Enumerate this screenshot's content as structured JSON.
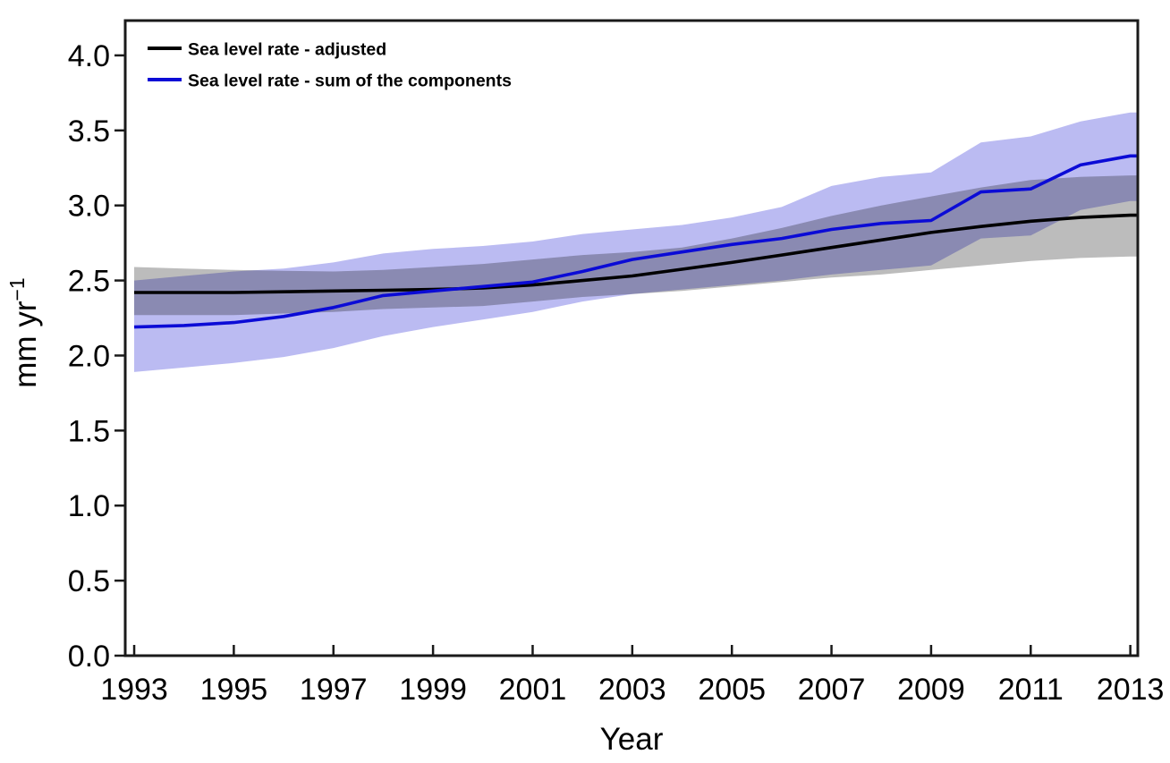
{
  "chart_data": {
    "type": "line",
    "title": "",
    "xlabel": "Year",
    "ylabel": "mm yr⁻¹",
    "grid": false,
    "legend_position": "top-left",
    "xlim": [
      1992.82,
      2013.15
    ],
    "ylim": [
      0,
      4.232
    ],
    "xticks": [
      1993,
      1995,
      1997,
      1999,
      2001,
      2003,
      2005,
      2007,
      2009,
      2011,
      2013
    ],
    "ytick_labels": [
      "0.0",
      "0.5",
      "1.0",
      "1.5",
      "2.0",
      "2.5",
      "3.0",
      "3.5",
      "4.0"
    ],
    "yticks": [
      0.0,
      0.5,
      1.0,
      1.5,
      2.0,
      2.5,
      3.0,
      3.5,
      4.0
    ],
    "x": [
      1993,
      1994,
      1995,
      1996,
      1997,
      1998,
      1999,
      2000,
      2001,
      2002,
      2003,
      2004,
      2005,
      2006,
      2007,
      2008,
      2009,
      2010,
      2011,
      2012,
      2013
    ],
    "series": [
      {
        "name": "Sea level rate - adjusted",
        "color": "#000000",
        "band_color": "#bcbcbc",
        "values": [
          2.42,
          2.42,
          2.42,
          2.425,
          2.43,
          2.435,
          2.44,
          2.45,
          2.47,
          2.5,
          2.53,
          2.575,
          2.62,
          2.67,
          2.72,
          2.77,
          2.82,
          2.86,
          2.895,
          2.92,
          2.935
        ],
        "band_top": [
          2.59,
          2.58,
          2.57,
          2.565,
          2.56,
          2.57,
          2.59,
          2.61,
          2.64,
          2.67,
          2.69,
          2.72,
          2.78,
          2.85,
          2.93,
          3.0,
          3.06,
          3.12,
          3.17,
          3.19,
          3.2
        ],
        "band_bottom": [
          2.27,
          2.27,
          2.27,
          2.28,
          2.29,
          2.31,
          2.32,
          2.33,
          2.36,
          2.39,
          2.41,
          2.43,
          2.46,
          2.49,
          2.52,
          2.54,
          2.57,
          2.6,
          2.63,
          2.65,
          2.66
        ]
      },
      {
        "name": "Sea level rate - sum of the components",
        "color": "#0b0bd6",
        "band_color": "#bbbbf2",
        "values": [
          2.19,
          2.2,
          2.22,
          2.26,
          2.32,
          2.4,
          2.43,
          2.46,
          2.49,
          2.56,
          2.64,
          2.69,
          2.74,
          2.78,
          2.84,
          2.88,
          2.9,
          3.09,
          3.11,
          3.27,
          3.33
        ],
        "band_top": [
          2.5,
          2.53,
          2.56,
          2.58,
          2.62,
          2.68,
          2.71,
          2.73,
          2.76,
          2.81,
          2.84,
          2.87,
          2.92,
          2.99,
          3.13,
          3.19,
          3.22,
          3.42,
          3.46,
          3.56,
          3.62
        ],
        "band_bottom": [
          1.89,
          1.92,
          1.95,
          1.99,
          2.05,
          2.13,
          2.19,
          2.24,
          2.29,
          2.36,
          2.41,
          2.44,
          2.47,
          2.5,
          2.54,
          2.57,
          2.6,
          2.78,
          2.8,
          2.97,
          3.03
        ]
      }
    ]
  }
}
